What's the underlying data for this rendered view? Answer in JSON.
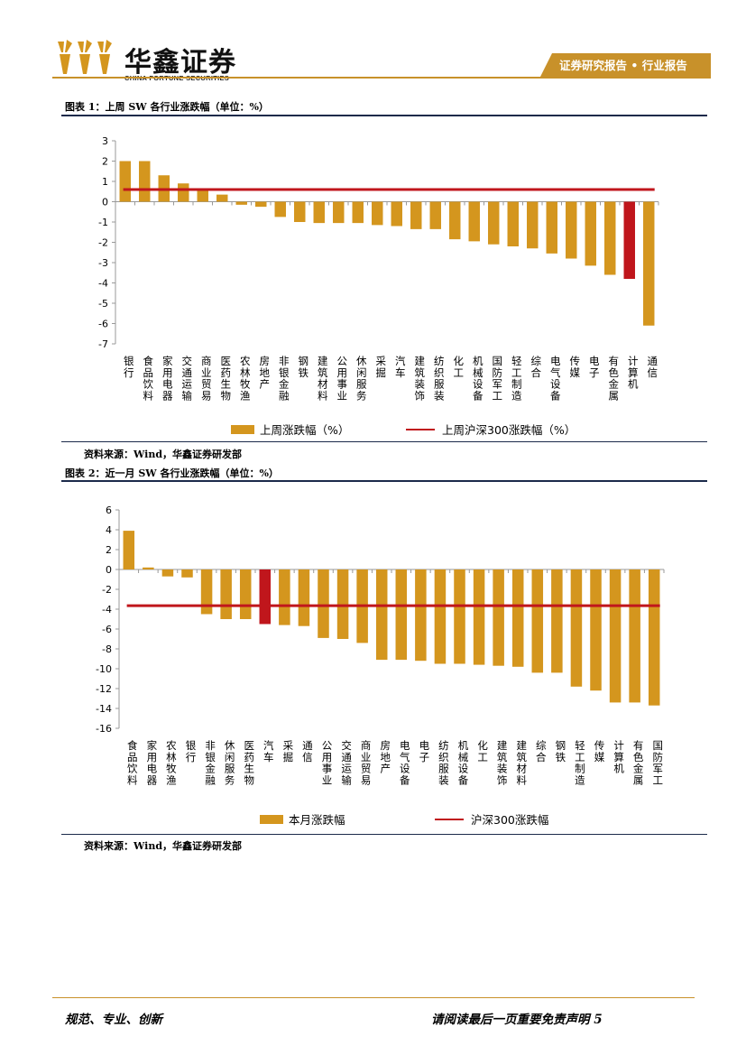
{
  "header": {
    "logo_text": "华鑫证券",
    "logo_sub": "CHINA FORTUNE SECURITIES",
    "tag": "证券研究报告 • 行业报告"
  },
  "colors": {
    "bar": "#D4961E",
    "highlight_bar": "#C0161C",
    "ref_line": "#C0161C",
    "accent": "#C8912A",
    "rule": "#1B2A4A"
  },
  "figure1": {
    "title": "图表 1：上周 SW 各行业涨跌幅（单位：%）",
    "source": "资料来源：Wind，华鑫证券研发部"
  },
  "figure2": {
    "title": "图表 2：近一月 SW 各行业涨跌幅（单位：%）",
    "source": "资料来源：Wind，华鑫证券研发部"
  },
  "chart_data": [
    {
      "type": "bar",
      "title": "上周 SW 各行业涨跌幅（单位：%）",
      "categories": [
        "银行",
        "食品饮料",
        "家用电器",
        "交通运输",
        "商业贸易",
        "医药生物",
        "农林牧渔",
        "房地产",
        "非银金融",
        "钢铁",
        "建筑材料",
        "公用事业",
        "休闲服务",
        "采掘",
        "汽车",
        "建筑装饰",
        "纺织服装",
        "化工",
        "机械设备",
        "国防军工",
        "轻工制造",
        "综合",
        "电气设备",
        "传媒",
        "电子",
        "有色金属",
        "计算机",
        "通信"
      ],
      "values": [
        2.0,
        2.0,
        1.3,
        0.9,
        0.6,
        0.35,
        -0.15,
        -0.25,
        -0.75,
        -1.0,
        -1.05,
        -1.05,
        -1.05,
        -1.15,
        -1.2,
        -1.35,
        -1.35,
        -1.85,
        -1.95,
        -2.1,
        -2.2,
        -2.3,
        -2.55,
        -2.8,
        -3.15,
        -3.6,
        -3.8,
        -6.1
      ],
      "highlight": "计算机",
      "reference": {
        "name": "上周沪深300涨跌幅（%）",
        "value": 0.6
      },
      "ylim": [
        -7,
        3
      ],
      "yticks": [
        3,
        2,
        1,
        0,
        -1,
        -2,
        -3,
        -4,
        -5,
        -6,
        -7
      ],
      "legend": [
        "上周涨跌幅（%）",
        "上周沪深300涨跌幅（%）"
      ],
      "legend_position": "bottom"
    },
    {
      "type": "bar",
      "title": "近一月 SW 各行业涨跌幅（单位：%）",
      "categories": [
        "食品饮料",
        "家用电器",
        "农林牧渔",
        "银行",
        "非银金融",
        "休闲服务",
        "医药生物",
        "汽车",
        "采掘",
        "通信",
        "公用事业",
        "交通运输",
        "商业贸易",
        "房地产",
        "电气设备",
        "电子",
        "纺织服装",
        "机械设备",
        "化工",
        "建筑装饰",
        "建筑材料",
        "综合",
        "钢铁",
        "轻工制造",
        "传媒",
        "计算机",
        "有色金属",
        "国防军工"
      ],
      "values": [
        3.9,
        0.2,
        -0.7,
        -0.8,
        -4.5,
        -5.0,
        -5.0,
        -5.5,
        -5.6,
        -5.7,
        -6.9,
        -7.0,
        -7.4,
        -9.1,
        -9.1,
        -9.2,
        -9.5,
        -9.5,
        -9.6,
        -9.7,
        -9.8,
        -10.4,
        -10.4,
        -11.8,
        -12.2,
        -13.4,
        -13.4,
        -13.7
      ],
      "highlight": "汽车",
      "reference": {
        "name": "沪深300涨跌幅",
        "value": -3.65
      },
      "ylim": [
        -16,
        6
      ],
      "yticks": [
        6,
        4,
        2,
        0,
        -2,
        -4,
        -6,
        -8,
        -10,
        -12,
        -14,
        -16
      ],
      "legend": [
        "本月涨跌幅",
        "沪深300涨跌幅"
      ],
      "legend_position": "bottom"
    }
  ],
  "footer": {
    "left": "规范、专业、创新",
    "right": "请阅读最后一页重要免责声明",
    "page": "5"
  }
}
